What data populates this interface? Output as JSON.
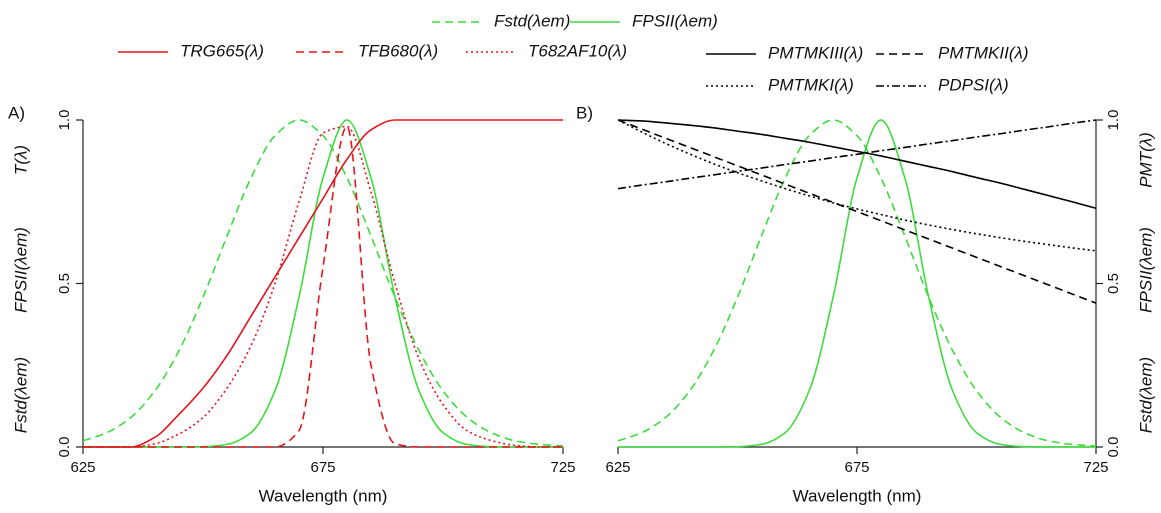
{
  "chart_data": [
    {
      "type": "line",
      "panel": "A)",
      "xlabel": "Wavelength (nm)",
      "ylabel": [
        "Fstd(λem)",
        "FPSII(λem)",
        "T(λ)"
      ],
      "y_axis_side": "left",
      "x": [
        625,
        630,
        635,
        640,
        645,
        650,
        655,
        660,
        665,
        670,
        675,
        680,
        685,
        690,
        695,
        700,
        705,
        710,
        715,
        720,
        725
      ],
      "xlim": [
        625,
        725
      ],
      "xticks": [
        625,
        675,
        725
      ],
      "ylim": [
        0,
        1
      ],
      "yticks": [
        {
          "value": 0,
          "label": "0.0"
        },
        {
          "value": 0.5,
          "label": "0.5"
        },
        {
          "value": 1,
          "label": "1.0"
        }
      ],
      "series": [
        {
          "name": "Fstd(λem)",
          "color": "#3ddc3d",
          "dash": "dashed",
          "values": [
            0.019,
            0.044,
            0.091,
            0.172,
            0.295,
            0.458,
            0.645,
            0.823,
            0.952,
            1,
            0.952,
            0.823,
            0.645,
            0.458,
            0.295,
            0.172,
            0.091,
            0.044,
            0.019,
            0.008,
            0.003
          ]
        },
        {
          "name": "FPSII(λem)",
          "color": "#3ddc3d",
          "dash": "solid",
          "values": [
            0,
            0,
            0,
            0,
            0,
            0.001,
            0.008,
            0.044,
            0.172,
            0.458,
            0.823,
            1,
            0.823,
            0.458,
            0.172,
            0.044,
            0.008,
            0.001,
            0,
            0,
            0
          ]
        },
        {
          "name": "TRG665(λ)",
          "color": "#e3151b",
          "dash": "solid",
          "values": [
            0,
            0,
            0,
            0.03,
            0.1,
            0.18,
            0.28,
            0.4,
            0.52,
            0.64,
            0.76,
            0.88,
            0.97,
            1,
            1,
            1,
            1,
            1,
            1,
            1,
            1
          ]
        },
        {
          "name": "TFB680(λ)",
          "color": "#e3151b",
          "dash": "dashed",
          "values": [
            0,
            0,
            0,
            0,
            0,
            0,
            0,
            0,
            0,
            0.05,
            0.55,
            0.98,
            0.25,
            0.01,
            0,
            0,
            0,
            0,
            0,
            0,
            0
          ]
        },
        {
          "name": "T682AF10(λ)",
          "color": "#e3151b",
          "dash": "dotted",
          "values": [
            0,
            0,
            0,
            0.01,
            0.04,
            0.09,
            0.18,
            0.31,
            0.5,
            0.75,
            0.96,
            0.98,
            0.78,
            0.5,
            0.27,
            0.13,
            0.05,
            0.02,
            0.005,
            0,
            0
          ]
        }
      ]
    },
    {
      "type": "line",
      "panel": "B)",
      "xlabel": "Wavelength (nm)",
      "ylabel": [
        "Fstd(λem)",
        "FPSII(λem)",
        "PMT(λ)"
      ],
      "y_axis_side": "right",
      "x": [
        625,
        630,
        635,
        640,
        645,
        650,
        655,
        660,
        665,
        670,
        675,
        680,
        685,
        690,
        695,
        700,
        705,
        710,
        715,
        720,
        725
      ],
      "xlim": [
        625,
        725
      ],
      "xticks": [
        625,
        675,
        725
      ],
      "ylim": [
        0,
        1
      ],
      "yticks": [
        {
          "value": 0,
          "label": "0.0"
        },
        {
          "value": 0.5,
          "label": "0.5"
        },
        {
          "value": 1,
          "label": "1.0"
        }
      ],
      "series": [
        {
          "name": "Fstd(λem)",
          "color": "#3ddc3d",
          "dash": "dashed",
          "values": [
            0.019,
            0.044,
            0.091,
            0.172,
            0.295,
            0.458,
            0.645,
            0.823,
            0.952,
            1,
            0.952,
            0.823,
            0.645,
            0.458,
            0.295,
            0.172,
            0.091,
            0.044,
            0.019,
            0.008,
            0.003
          ]
        },
        {
          "name": "FPSII(λem)",
          "color": "#3ddc3d",
          "dash": "solid",
          "values": [
            0,
            0,
            0,
            0,
            0,
            0.001,
            0.008,
            0.044,
            0.172,
            0.458,
            0.823,
            1,
            0.823,
            0.458,
            0.172,
            0.044,
            0.008,
            0.001,
            0,
            0,
            0
          ]
        },
        {
          "name": "PMTMKIII(λ)",
          "color": "#000000",
          "dash": "solid",
          "values": [
            1,
            0.997,
            0.991,
            0.984,
            0.976,
            0.966,
            0.956,
            0.944,
            0.932,
            0.918,
            0.904,
            0.89,
            0.874,
            0.858,
            0.842,
            0.824,
            0.807,
            0.788,
            0.769,
            0.75,
            0.73
          ]
        },
        {
          "name": "PMTMKII(λ)",
          "color": "#000000",
          "dash": "dashed",
          "values": [
            1,
            0.972,
            0.944,
            0.916,
            0.888,
            0.86,
            0.832,
            0.804,
            0.776,
            0.748,
            0.72,
            0.692,
            0.664,
            0.636,
            0.608,
            0.58,
            0.552,
            0.524,
            0.496,
            0.468,
            0.44
          ]
        },
        {
          "name": "PMTMKI(λ)",
          "color": "#000000",
          "dash": "dotted",
          "values": [
            1,
            0.963,
            0.928,
            0.896,
            0.866,
            0.839,
            0.814,
            0.79,
            0.768,
            0.747,
            0.728,
            0.711,
            0.694,
            0.679,
            0.665,
            0.652,
            0.64,
            0.629,
            0.619,
            0.609,
            0.6
          ]
        },
        {
          "name": "PDPSI(λ)",
          "color": "#000000",
          "dash": "dashdot",
          "values": [
            0.79,
            0.801,
            0.811,
            0.822,
            0.832,
            0.843,
            0.853,
            0.864,
            0.874,
            0.885,
            0.895,
            0.906,
            0.916,
            0.927,
            0.937,
            0.948,
            0.958,
            0.969,
            0.979,
            0.99,
            1
          ]
        }
      ]
    }
  ]
}
